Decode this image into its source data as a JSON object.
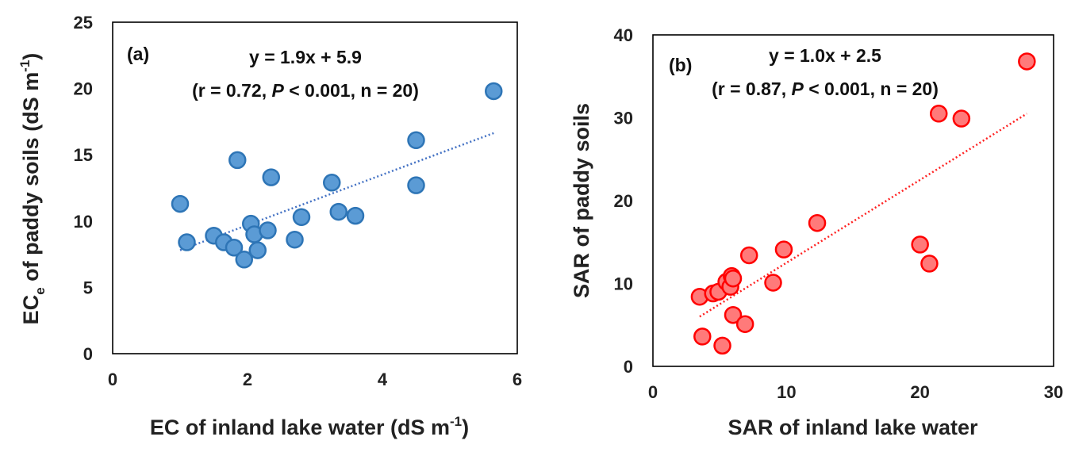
{
  "chart_data": [
    {
      "type": "scatter",
      "panel_label": "(a)",
      "xlabel": "EC of inland lake water (dS m",
      "xlabel_sup": "-1",
      "xlabel_end": ")",
      "ylabel_main": "EC",
      "ylabel_sub": "e",
      "ylabel_rest": " of paddy soils (dS m",
      "ylabel_sup": "-1",
      "ylabel_end": ")",
      "xlim": [
        0,
        6
      ],
      "ylim": [
        0,
        25
      ],
      "xticks": [
        0,
        2,
        4,
        6
      ],
      "yticks": [
        0,
        5,
        10,
        15,
        20,
        25
      ],
      "equation": "y = 1.9x + 5.9",
      "stats_pre": "(r = 0.72, ",
      "stats_p": "P",
      "stats_post": " < 0.001, n = 20)",
      "trendline": {
        "slope": 1.9,
        "intercept": 5.9,
        "x_range": [
          1.0,
          5.65
        ]
      },
      "colors": {
        "fill": "#5b9bd5",
        "stroke": "#2e75b6",
        "trend": "#4472c4"
      },
      "points": [
        {
          "x": 1.0,
          "y": 11.3
        },
        {
          "x": 1.1,
          "y": 8.4
        },
        {
          "x": 1.5,
          "y": 8.9
        },
        {
          "x": 1.65,
          "y": 8.4
        },
        {
          "x": 1.8,
          "y": 8.0
        },
        {
          "x": 1.85,
          "y": 14.6
        },
        {
          "x": 1.95,
          "y": 7.1
        },
        {
          "x": 2.05,
          "y": 9.8
        },
        {
          "x": 2.1,
          "y": 9.0
        },
        {
          "x": 2.15,
          "y": 7.8
        },
        {
          "x": 2.3,
          "y": 9.3
        },
        {
          "x": 2.35,
          "y": 13.3
        },
        {
          "x": 2.7,
          "y": 8.6
        },
        {
          "x": 2.8,
          "y": 10.3
        },
        {
          "x": 3.25,
          "y": 12.9
        },
        {
          "x": 3.35,
          "y": 10.7
        },
        {
          "x": 3.6,
          "y": 10.4
        },
        {
          "x": 4.5,
          "y": 16.1
        },
        {
          "x": 4.5,
          "y": 12.7
        },
        {
          "x": 5.65,
          "y": 19.8
        }
      ]
    },
    {
      "type": "scatter",
      "panel_label": "(b)",
      "xlabel": "SAR of inland lake water",
      "ylabel": "SAR of paddy soils",
      "xlim": [
        0,
        30
      ],
      "ylim": [
        0,
        40
      ],
      "xticks": [
        0,
        10,
        20,
        30
      ],
      "yticks": [
        0,
        10,
        20,
        30,
        40
      ],
      "equation": "y = 1.0x + 2.5",
      "stats_pre": "(r = 0.87, ",
      "stats_p": "P",
      "stats_post": " < 0.001, n = 20)",
      "trendline": {
        "slope": 1.0,
        "intercept": 2.5,
        "x_range": [
          3.5,
          28.0
        ]
      },
      "colors": {
        "fill": "#ff7a7a",
        "stroke": "#ff0000",
        "trend": "#ff2222"
      },
      "points": [
        {
          "x": 3.5,
          "y": 8.4
        },
        {
          "x": 3.7,
          "y": 3.6
        },
        {
          "x": 4.5,
          "y": 8.8
        },
        {
          "x": 4.9,
          "y": 9.0
        },
        {
          "x": 5.2,
          "y": 2.5
        },
        {
          "x": 5.5,
          "y": 10.2
        },
        {
          "x": 5.8,
          "y": 9.6
        },
        {
          "x": 5.9,
          "y": 10.9
        },
        {
          "x": 6.0,
          "y": 10.6
        },
        {
          "x": 6.0,
          "y": 6.2
        },
        {
          "x": 6.9,
          "y": 5.1
        },
        {
          "x": 7.2,
          "y": 13.4
        },
        {
          "x": 9.0,
          "y": 10.1
        },
        {
          "x": 9.8,
          "y": 14.1
        },
        {
          "x": 12.3,
          "y": 17.3
        },
        {
          "x": 20.0,
          "y": 14.7
        },
        {
          "x": 20.7,
          "y": 12.4
        },
        {
          "x": 21.4,
          "y": 30.5
        },
        {
          "x": 23.1,
          "y": 29.9
        },
        {
          "x": 28.0,
          "y": 36.8
        }
      ]
    }
  ]
}
